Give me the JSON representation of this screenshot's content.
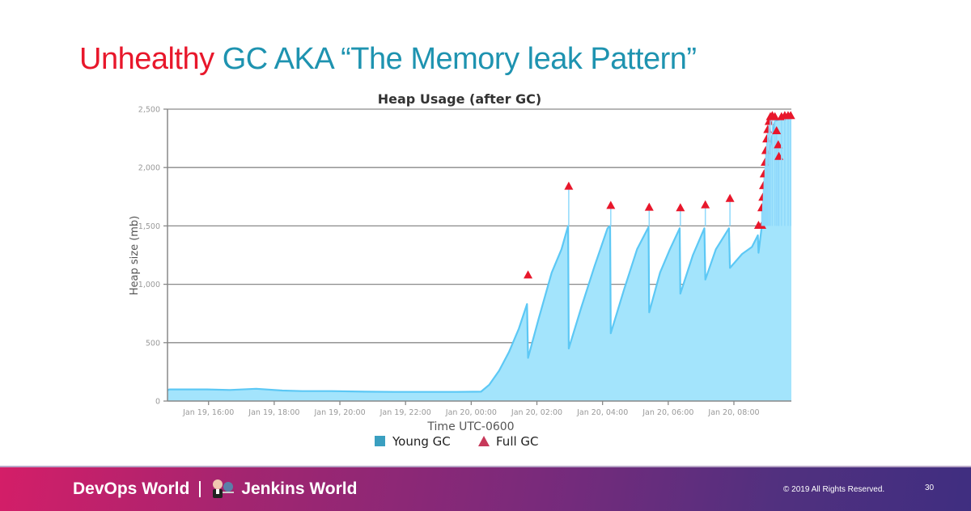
{
  "slide": {
    "title_red": "Unhealthy",
    "title_blue": "GC AKA “The Memory leak Pattern”",
    "colors": {
      "title_red": "#e8172b",
      "title_blue": "#1e93b0",
      "area_fill": "#a3e4fc",
      "area_line": "#5cc8f5",
      "marker": "#e8172b",
      "legend_young": "#3a9fc0",
      "legend_full": "#c7395a"
    }
  },
  "footer": {
    "brand_left": "DevOps World",
    "brand_right": "Jenkins World",
    "copyright": "© 2019 All Rights Reserved.",
    "page_number": "30"
  },
  "chart_data": {
    "type": "area",
    "title": "Heap Usage (after GC)",
    "xlabel": "Time UTC-0600",
    "ylabel": "Heap size (mb)",
    "ylim": [
      0,
      2500
    ],
    "yticks": [
      0,
      500,
      1000,
      1500,
      2000,
      2500
    ],
    "ytick_labels": [
      "0",
      "500",
      "1,000",
      "1,500",
      "2,000",
      "2,500"
    ],
    "xtick_labels": [
      "Jan 19, 16:00",
      "Jan 19, 18:00",
      "Jan 19, 20:00",
      "Jan 19, 22:00",
      "Jan 20, 00:00",
      "Jan 20, 02:00",
      "Jan 20, 04:00",
      "Jan 20, 06:00",
      "Jan 20, 08:00"
    ],
    "x_unit": "hours since Jan 19 14:45",
    "xlim": [
      0,
      19
    ],
    "xtick_positions": [
      1.25,
      3.25,
      5.25,
      7.25,
      9.25,
      11.25,
      13.25,
      15.25,
      17.25
    ],
    "grid": true,
    "legend": [
      "Young GC",
      "Full GC"
    ],
    "legend_position": "bottom",
    "series": [
      {
        "name": "Young GC",
        "kind": "area",
        "points": [
          [
            0,
            0
          ],
          [
            0,
            90
          ],
          [
            0.05,
            100
          ],
          [
            0.6,
            100
          ],
          [
            1.2,
            100
          ],
          [
            1.9,
            95
          ],
          [
            2.7,
            105
          ],
          [
            3.5,
            90
          ],
          [
            4.1,
            85
          ],
          [
            5,
            85
          ],
          [
            6,
            80
          ],
          [
            6.9,
            78
          ],
          [
            7.8,
            78
          ],
          [
            8.8,
            78
          ],
          [
            9.55,
            80
          ],
          [
            9.8,
            140
          ],
          [
            10.1,
            260
          ],
          [
            10.4,
            420
          ],
          [
            10.7,
            620
          ],
          [
            10.95,
            830
          ],
          [
            10.98,
            370
          ],
          [
            11.3,
            700
          ],
          [
            11.7,
            1100
          ],
          [
            12.0,
            1300
          ],
          [
            12.2,
            1500
          ],
          [
            12.22,
            450
          ],
          [
            12.6,
            800
          ],
          [
            13.0,
            1150
          ],
          [
            13.4,
            1480
          ],
          [
            13.48,
            1500
          ],
          [
            13.5,
            580
          ],
          [
            13.9,
            950
          ],
          [
            14.3,
            1300
          ],
          [
            14.65,
            1490
          ],
          [
            14.67,
            760
          ],
          [
            15.0,
            1100
          ],
          [
            15.3,
            1300
          ],
          [
            15.6,
            1480
          ],
          [
            15.62,
            920
          ],
          [
            16.0,
            1250
          ],
          [
            16.35,
            1480
          ],
          [
            16.38,
            1040
          ],
          [
            16.7,
            1300
          ],
          [
            17.1,
            1480
          ],
          [
            17.13,
            1140
          ],
          [
            17.5,
            1260
          ],
          [
            17.8,
            1320
          ],
          [
            17.98,
            1420
          ],
          [
            18.0,
            1270
          ],
          [
            18.1,
            1500
          ],
          [
            18.3,
            2100
          ],
          [
            18.5,
            2400
          ],
          [
            18.7,
            2420
          ],
          [
            18.9,
            2450
          ],
          [
            19,
            2450
          ],
          [
            19,
            0
          ]
        ]
      },
      {
        "name": "Full GC",
        "kind": "markers",
        "points": [
          [
            10.98,
            1085
          ],
          [
            12.22,
            1845
          ],
          [
            13.5,
            1680
          ],
          [
            14.67,
            1665
          ],
          [
            15.62,
            1660
          ],
          [
            16.38,
            1685
          ],
          [
            17.13,
            1740
          ],
          [
            18.0,
            1510
          ],
          [
            18.1,
            1510
          ],
          [
            18.1,
            1660
          ],
          [
            18.13,
            1750
          ],
          [
            18.15,
            1850
          ],
          [
            18.17,
            1950
          ],
          [
            18.2,
            2050
          ],
          [
            18.22,
            2150
          ],
          [
            18.25,
            2250
          ],
          [
            18.28,
            2330
          ],
          [
            18.32,
            2400
          ],
          [
            18.36,
            2440
          ],
          [
            18.42,
            2450
          ],
          [
            18.5,
            2440
          ],
          [
            18.55,
            2320
          ],
          [
            18.6,
            2200
          ],
          [
            18.62,
            2100
          ],
          [
            18.7,
            2440
          ],
          [
            18.8,
            2450
          ],
          [
            18.9,
            2450
          ],
          [
            18.98,
            2450
          ]
        ]
      }
    ]
  }
}
